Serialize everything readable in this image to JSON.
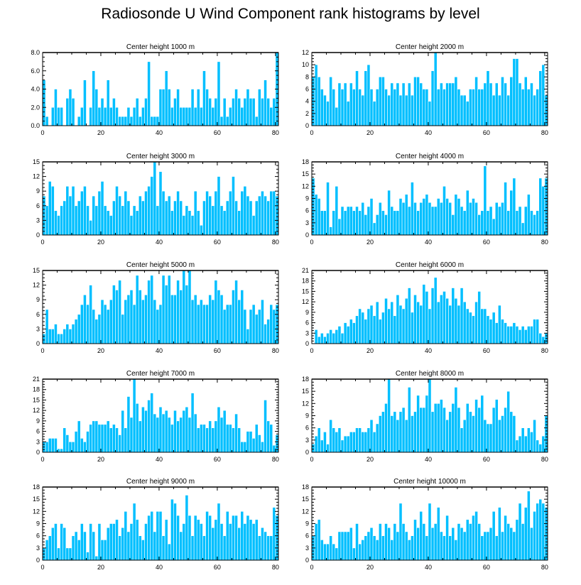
{
  "title": "Radiosonde U Wind Component rank histograms by level",
  "colors": {
    "bar": "#00BFFF",
    "bar_edge": "#ffffff",
    "axis": "#000000",
    "background": "#ffffff"
  },
  "chart_data": [
    {
      "type": "bar",
      "title": "Center height 1000 m",
      "xlabel": "",
      "ylabel": "",
      "xlim": [
        0,
        81
      ],
      "ylim": [
        0,
        8
      ],
      "xticks": [
        0,
        20,
        40,
        60,
        80
      ],
      "yticks": [
        0.0,
        2.0,
        4.0,
        6.0,
        8.0
      ],
      "ytick_labels": [
        "0.0",
        "2.0",
        "4.0",
        "6.0",
        "8.0"
      ],
      "categories_start": 0,
      "values": [
        5,
        1,
        0,
        2,
        4,
        2,
        2,
        0,
        3,
        4,
        3,
        0,
        1,
        2,
        5,
        0,
        2,
        6,
        4,
        2,
        3,
        2,
        5,
        2,
        3,
        2,
        1,
        1,
        1,
        2,
        1,
        2,
        3,
        1,
        2,
        3,
        7,
        1,
        1,
        1,
        4,
        4,
        6,
        4,
        2,
        3,
        4,
        2,
        2,
        2,
        2,
        4,
        2,
        4,
        2,
        6,
        4,
        3,
        2,
        3,
        7,
        1,
        3,
        1,
        2,
        3,
        4,
        3,
        2,
        3,
        4,
        3,
        3,
        1,
        4,
        3,
        5,
        3,
        2,
        3,
        8,
        1
      ]
    },
    {
      "type": "bar",
      "title": "Center height 2000 m",
      "xlabel": "",
      "ylabel": "",
      "xlim": [
        0,
        81
      ],
      "ylim": [
        0,
        12
      ],
      "xticks": [
        0,
        20,
        40,
        60,
        80
      ],
      "yticks": [
        0,
        2,
        4,
        6,
        8,
        10,
        12
      ],
      "ytick_labels": [
        "0",
        "2",
        "4",
        "6",
        "8",
        "10",
        "12"
      ],
      "categories_start": 0,
      "values": [
        8,
        10,
        8,
        6,
        5,
        4,
        8,
        6,
        3,
        7,
        6,
        7,
        4,
        7,
        6,
        9,
        6,
        5,
        9,
        10,
        6,
        4,
        6,
        8,
        8,
        6,
        5,
        7,
        6,
        7,
        5,
        7,
        5,
        7,
        5,
        8,
        8,
        7,
        6,
        6,
        4,
        9,
        12,
        6,
        7,
        6,
        7,
        7,
        7,
        8,
        6,
        5,
        5,
        4,
        6,
        6,
        8,
        6,
        6,
        7,
        9,
        7,
        5,
        7,
        5,
        8,
        7,
        5,
        8,
        11,
        11,
        7,
        6,
        8,
        6,
        7,
        5,
        6,
        9,
        10,
        5,
        6
      ]
    },
    {
      "type": "bar",
      "title": "Center height 3000 m",
      "xlabel": "",
      "ylabel": "",
      "xlim": [
        0,
        81
      ],
      "ylim": [
        0,
        15
      ],
      "xticks": [
        0,
        20,
        40,
        60,
        80
      ],
      "yticks": [
        0,
        3,
        6,
        9,
        12,
        15
      ],
      "ytick_labels": [
        "0",
        "3",
        "6",
        "9",
        "12",
        "15"
      ],
      "categories_start": 0,
      "values": [
        8,
        6,
        11,
        10,
        5,
        4,
        6,
        7,
        10,
        8,
        10,
        6,
        7,
        9,
        10,
        6,
        3,
        8,
        6,
        9,
        11,
        6,
        5,
        4,
        7,
        10,
        8,
        6,
        9,
        7,
        4,
        6,
        5,
        8,
        7,
        9,
        10,
        12,
        15,
        6,
        13,
        9,
        7,
        8,
        5,
        7,
        9,
        7,
        4,
        6,
        5,
        4,
        9,
        5,
        2,
        7,
        9,
        8,
        6,
        9,
        12,
        6,
        5,
        7,
        9,
        12,
        7,
        5,
        9,
        10,
        8,
        7,
        4,
        7,
        8,
        9,
        8,
        7,
        9,
        9,
        8,
        3
      ]
    },
    {
      "type": "bar",
      "title": "Center height 4000 m",
      "xlabel": "",
      "ylabel": "",
      "xlim": [
        0,
        81
      ],
      "ylim": [
        0,
        18
      ],
      "xticks": [
        0,
        20,
        40,
        60,
        80
      ],
      "yticks": [
        0,
        3,
        6,
        9,
        12,
        15,
        18
      ],
      "ytick_labels": [
        "0",
        "3",
        "6",
        "9",
        "12",
        "15",
        "18"
      ],
      "categories_start": 0,
      "values": [
        14,
        10,
        9,
        6,
        6,
        13,
        2,
        6,
        12,
        4,
        7,
        6,
        7,
        7,
        6,
        7,
        6,
        8,
        5,
        7,
        9,
        3,
        5,
        8,
        6,
        5,
        11,
        7,
        6,
        6,
        9,
        8,
        10,
        7,
        13,
        8,
        6,
        8,
        9,
        10,
        8,
        7,
        7,
        9,
        8,
        12,
        9,
        8,
        5,
        10,
        9,
        7,
        6,
        11,
        8,
        9,
        8,
        5,
        6,
        17,
        6,
        7,
        4,
        8,
        7,
        8,
        13,
        6,
        11,
        14,
        6,
        7,
        3,
        7,
        10,
        6,
        5,
        6,
        14,
        12,
        14,
        5
      ]
    },
    {
      "type": "bar",
      "title": "Center height 5000 m",
      "xlabel": "",
      "ylabel": "",
      "xlim": [
        0,
        81
      ],
      "ylim": [
        0,
        15
      ],
      "xticks": [
        0,
        20,
        40,
        60,
        80
      ],
      "yticks": [
        0,
        3,
        6,
        9,
        12,
        15
      ],
      "ytick_labels": [
        "0",
        "3",
        "6",
        "9",
        "12",
        "15"
      ],
      "categories_start": 0,
      "values": [
        2,
        7,
        3,
        3,
        4,
        2,
        2,
        3,
        4,
        3,
        4,
        5,
        6,
        8,
        10,
        8,
        12,
        7,
        5,
        6,
        9,
        8,
        7,
        9,
        12,
        11,
        13,
        6,
        9,
        10,
        11,
        8,
        14,
        11,
        9,
        10,
        13,
        14,
        9,
        7,
        8,
        14,
        12,
        14,
        10,
        10,
        13,
        11,
        15,
        12,
        15,
        9,
        10,
        8,
        9,
        8,
        8,
        10,
        9,
        13,
        11,
        10,
        7,
        8,
        8,
        11,
        13,
        9,
        11,
        7,
        3,
        7,
        8,
        6,
        7,
        9,
        4,
        5,
        8,
        7,
        8,
        9
      ]
    },
    {
      "type": "bar",
      "title": "Center height 6000 m",
      "xlabel": "",
      "ylabel": "",
      "xlim": [
        0,
        81
      ],
      "ylim": [
        0,
        21
      ],
      "xticks": [
        0,
        20,
        40,
        60,
        80
      ],
      "yticks": [
        0,
        3,
        6,
        9,
        12,
        15,
        18,
        21
      ],
      "ytick_labels": [
        "0",
        "3",
        "6",
        "9",
        "12",
        "15",
        "18",
        "21"
      ],
      "categories_start": 0,
      "values": [
        0,
        4,
        2,
        3,
        2,
        3,
        4,
        3,
        4,
        5,
        3,
        6,
        5,
        7,
        6,
        8,
        10,
        9,
        7,
        10,
        11,
        8,
        12,
        7,
        9,
        13,
        10,
        12,
        8,
        14,
        11,
        10,
        13,
        16,
        9,
        14,
        12,
        11,
        17,
        15,
        10,
        16,
        19,
        12,
        14,
        15,
        13,
        11,
        16,
        13,
        11,
        16,
        12,
        10,
        9,
        8,
        12,
        15,
        10,
        10,
        8,
        7,
        9,
        6,
        11,
        7,
        6,
        5,
        5,
        6,
        5,
        4,
        5,
        4,
        5,
        5,
        7,
        7,
        3,
        2,
        3,
        2
      ]
    },
    {
      "type": "bar",
      "title": "Center height 7000 m",
      "xlabel": "",
      "ylabel": "",
      "xlim": [
        0,
        81
      ],
      "ylim": [
        0,
        21
      ],
      "xticks": [
        0,
        20,
        40,
        60,
        80
      ],
      "yticks": [
        0,
        3,
        6,
        9,
        12,
        15,
        18,
        21
      ],
      "ytick_labels": [
        "0",
        "3",
        "6",
        "9",
        "12",
        "15",
        "18",
        "21"
      ],
      "categories_start": 0,
      "values": [
        3,
        3,
        4,
        4,
        4,
        1,
        1,
        7,
        5,
        3,
        3,
        6,
        9,
        4,
        3,
        6,
        8,
        9,
        9,
        8,
        8,
        8,
        9,
        7,
        8,
        7,
        5,
        12,
        7,
        16,
        10,
        21,
        14,
        9,
        13,
        12,
        15,
        17,
        11,
        10,
        13,
        11,
        12,
        10,
        8,
        12,
        9,
        10,
        12,
        13,
        10,
        17,
        11,
        7,
        8,
        8,
        7,
        9,
        7,
        9,
        13,
        10,
        12,
        8,
        8,
        7,
        11,
        7,
        3,
        3,
        6,
        6,
        4,
        8,
        5,
        3,
        15,
        9,
        8,
        2,
        5,
        2
      ]
    },
    {
      "type": "bar",
      "title": "Center height 8000 m",
      "xlabel": "",
      "ylabel": "",
      "xlim": [
        0,
        81
      ],
      "ylim": [
        0,
        18
      ],
      "xticks": [
        0,
        20,
        40,
        60,
        80
      ],
      "yticks": [
        0,
        3,
        6,
        9,
        12,
        15,
        18
      ],
      "ytick_labels": [
        "0",
        "3",
        "6",
        "9",
        "12",
        "15",
        "18"
      ],
      "categories_start": 0,
      "values": [
        2,
        4,
        6,
        3,
        5,
        2,
        8,
        6,
        5,
        6,
        3,
        4,
        4,
        5,
        5,
        6,
        6,
        5,
        5,
        6,
        8,
        5,
        7,
        9,
        10,
        12,
        18,
        9,
        10,
        8,
        10,
        11,
        8,
        16,
        9,
        10,
        14,
        11,
        11,
        14,
        18,
        10,
        12,
        12,
        13,
        11,
        8,
        10,
        12,
        16,
        11,
        6,
        8,
        12,
        10,
        9,
        13,
        11,
        14,
        8,
        7,
        7,
        11,
        13,
        8,
        9,
        11,
        15,
        10,
        9,
        3,
        4,
        6,
        4,
        6,
        5,
        8,
        3,
        2,
        4,
        9,
        3
      ]
    },
    {
      "type": "bar",
      "title": "Center height 9000 m",
      "xlabel": "",
      "ylabel": "",
      "xlim": [
        0,
        81
      ],
      "ylim": [
        0,
        18
      ],
      "xticks": [
        0,
        20,
        40,
        60,
        80
      ],
      "yticks": [
        0,
        3,
        6,
        9,
        12,
        15,
        18
      ],
      "ytick_labels": [
        "0",
        "3",
        "6",
        "9",
        "12",
        "15",
        "18"
      ],
      "categories_start": 0,
      "values": [
        3,
        5,
        6,
        8,
        9,
        3,
        9,
        8,
        3,
        3,
        6,
        7,
        5,
        9,
        7,
        2,
        9,
        7,
        1,
        9,
        5,
        5,
        8,
        9,
        9,
        10,
        6,
        8,
        12,
        7,
        9,
        14,
        10,
        6,
        5,
        9,
        11,
        12,
        7,
        12,
        12,
        6,
        10,
        4,
        15,
        14,
        11,
        7,
        9,
        16,
        11,
        6,
        11,
        10,
        9,
        6,
        12,
        11,
        8,
        10,
        14,
        9,
        6,
        12,
        9,
        11,
        11,
        8,
        12,
        9,
        11,
        10,
        9,
        10,
        6,
        8,
        7,
        6,
        6,
        13,
        11,
        6
      ]
    },
    {
      "type": "bar",
      "title": "Center height 10000 m",
      "xlabel": "",
      "ylabel": "",
      "xlim": [
        0,
        81
      ],
      "ylim": [
        0,
        18
      ],
      "xticks": [
        0,
        20,
        40,
        60,
        80
      ],
      "yticks": [
        0,
        3,
        6,
        9,
        12,
        15,
        18
      ],
      "ytick_labels": [
        "0",
        "3",
        "6",
        "9",
        "12",
        "15",
        "18"
      ],
      "categories_start": 0,
      "values": [
        6,
        9,
        10,
        5,
        4,
        4,
        6,
        4,
        3,
        7,
        7,
        7,
        7,
        8,
        3,
        9,
        4,
        5,
        6,
        7,
        8,
        6,
        5,
        9,
        6,
        9,
        8,
        5,
        9,
        7,
        14,
        9,
        7,
        5,
        6,
        10,
        8,
        12,
        9,
        6,
        14,
        8,
        9,
        13,
        7,
        6,
        11,
        6,
        8,
        5,
        9,
        8,
        7,
        10,
        9,
        11,
        12,
        9,
        6,
        7,
        7,
        8,
        12,
        6,
        13,
        7,
        11,
        9,
        8,
        7,
        10,
        14,
        9,
        13,
        17,
        8,
        12,
        14,
        15,
        14,
        13,
        4
      ]
    }
  ]
}
